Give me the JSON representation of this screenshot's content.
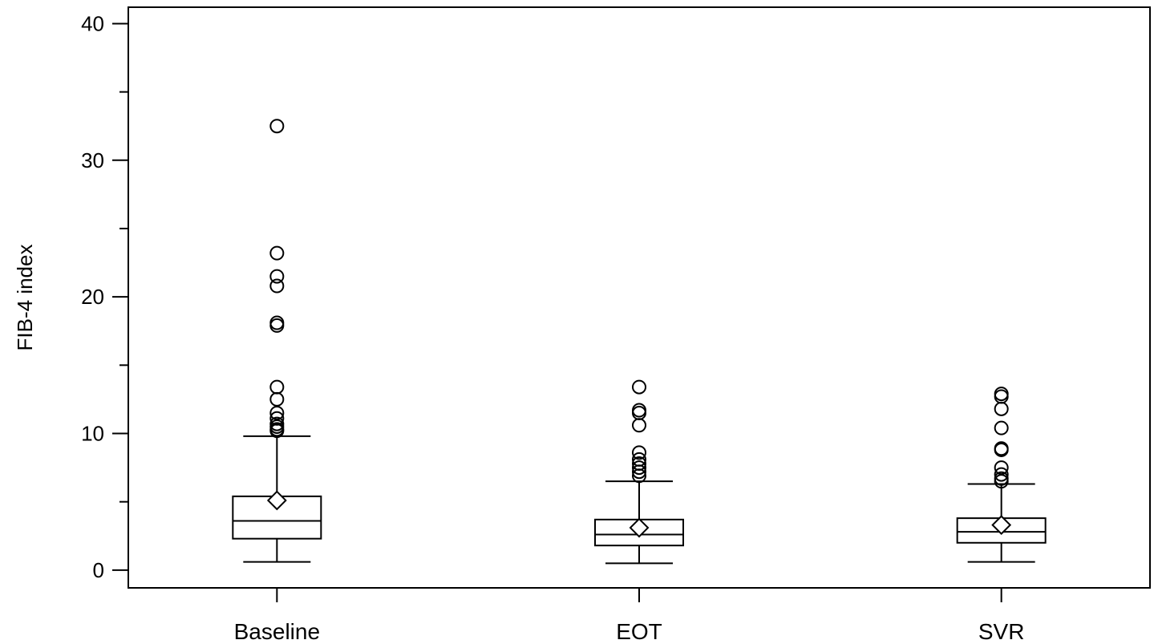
{
  "chart_data": {
    "type": "box",
    "ylabel": "FIB-4 index",
    "xlabel": "",
    "ylim": [
      -1.3,
      41.2
    ],
    "yticks": [
      0,
      10,
      20,
      30,
      40
    ],
    "categories": [
      "Baseline",
      "EOT",
      "SVR"
    ],
    "boxes": [
      {
        "name": "Baseline",
        "whisker_low": 0.6,
        "q1": 2.3,
        "median": 3.6,
        "q3": 5.4,
        "whisker_high": 9.8,
        "mean": 5.1,
        "outliers": [
          32.5,
          23.2,
          21.5,
          20.8,
          18.1,
          17.9,
          13.4,
          12.5,
          11.5,
          11.1,
          10.7,
          10.5,
          10.3,
          10.2
        ]
      },
      {
        "name": "EOT",
        "whisker_low": 0.5,
        "q1": 1.8,
        "median": 2.6,
        "q3": 3.7,
        "whisker_high": 6.5,
        "mean": 3.1,
        "outliers": [
          13.4,
          11.7,
          11.5,
          10.6,
          8.6,
          8.1,
          7.8,
          7.5,
          7.2,
          6.9
        ]
      },
      {
        "name": "SVR",
        "whisker_low": 0.6,
        "q1": 2.0,
        "median": 2.8,
        "q3": 3.8,
        "whisker_high": 6.3,
        "mean": 3.3,
        "outliers": [
          12.9,
          12.7,
          11.8,
          10.4,
          8.9,
          8.8,
          7.5,
          7.0,
          6.7,
          6.5
        ]
      }
    ],
    "colors": {
      "stroke": "#000000",
      "background": "#ffffff"
    },
    "grid": false,
    "legend": "none"
  }
}
